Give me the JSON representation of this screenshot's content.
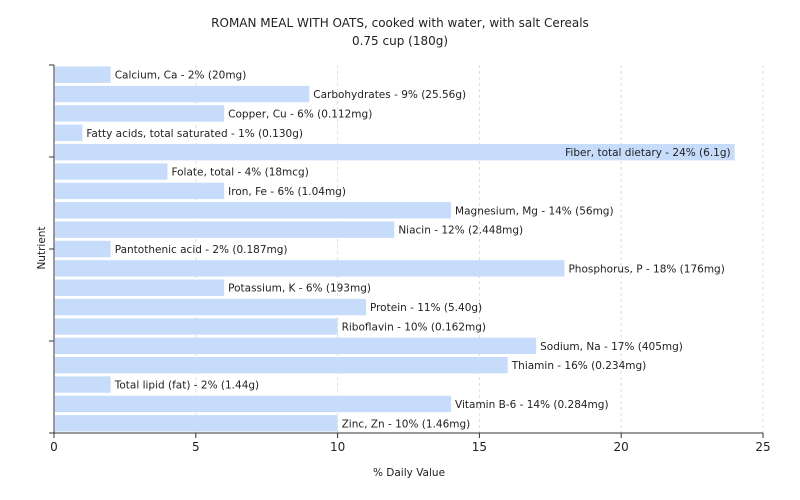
{
  "chart_data": {
    "type": "bar",
    "orientation": "horizontal",
    "title": "ROMAN MEAL WITH OATS, cooked with water, with salt Cereals",
    "subtitle": "0.75 cup (180g)",
    "xlabel": "% Daily Value",
    "ylabel": "Nutrient",
    "xlim": [
      0,
      25
    ],
    "xticks": [
      0,
      5,
      10,
      15,
      20,
      25
    ],
    "grid": true,
    "bar_color": "#c6dcfa",
    "categories": [
      "Calcium, Ca",
      "Carbohydrates",
      "Copper, Cu",
      "Fatty acids, total saturated",
      "Fiber, total dietary",
      "Folate, total",
      "Iron, Fe",
      "Magnesium, Mg",
      "Niacin",
      "Pantothenic acid",
      "Phosphorus, P",
      "Potassium, K",
      "Protein",
      "Riboflavin",
      "Sodium, Na",
      "Thiamin",
      "Total lipid (fat)",
      "Vitamin B-6",
      "Zinc, Zn"
    ],
    "values": [
      2,
      9,
      6,
      1,
      24,
      4,
      6,
      14,
      12,
      2,
      18,
      6,
      11,
      10,
      17,
      16,
      2,
      14,
      10
    ],
    "labels": [
      "Calcium, Ca - 2% (20mg)",
      "Carbohydrates - 9% (25.56g)",
      "Copper, Cu - 6% (0.112mg)",
      "Fatty acids, total saturated - 1% (0.130g)",
      "Fiber, total dietary - 24% (6.1g)",
      "Folate, total - 4% (18mcg)",
      "Iron, Fe - 6% (1.04mg)",
      "Magnesium, Mg - 14% (56mg)",
      "Niacin - 12% (2.448mg)",
      "Pantothenic acid - 2% (0.187mg)",
      "Phosphorus, P - 18% (176mg)",
      "Potassium, K - 6% (193mg)",
      "Protein - 11% (5.40g)",
      "Riboflavin - 10% (0.162mg)",
      "Sodium, Na - 17% (405mg)",
      "Thiamin - 16% (0.234mg)",
      "Total lipid (fat) - 2% (1.44g)",
      "Vitamin B-6 - 14% (0.284mg)",
      "Zinc, Zn - 10% (1.46mg)"
    ]
  }
}
